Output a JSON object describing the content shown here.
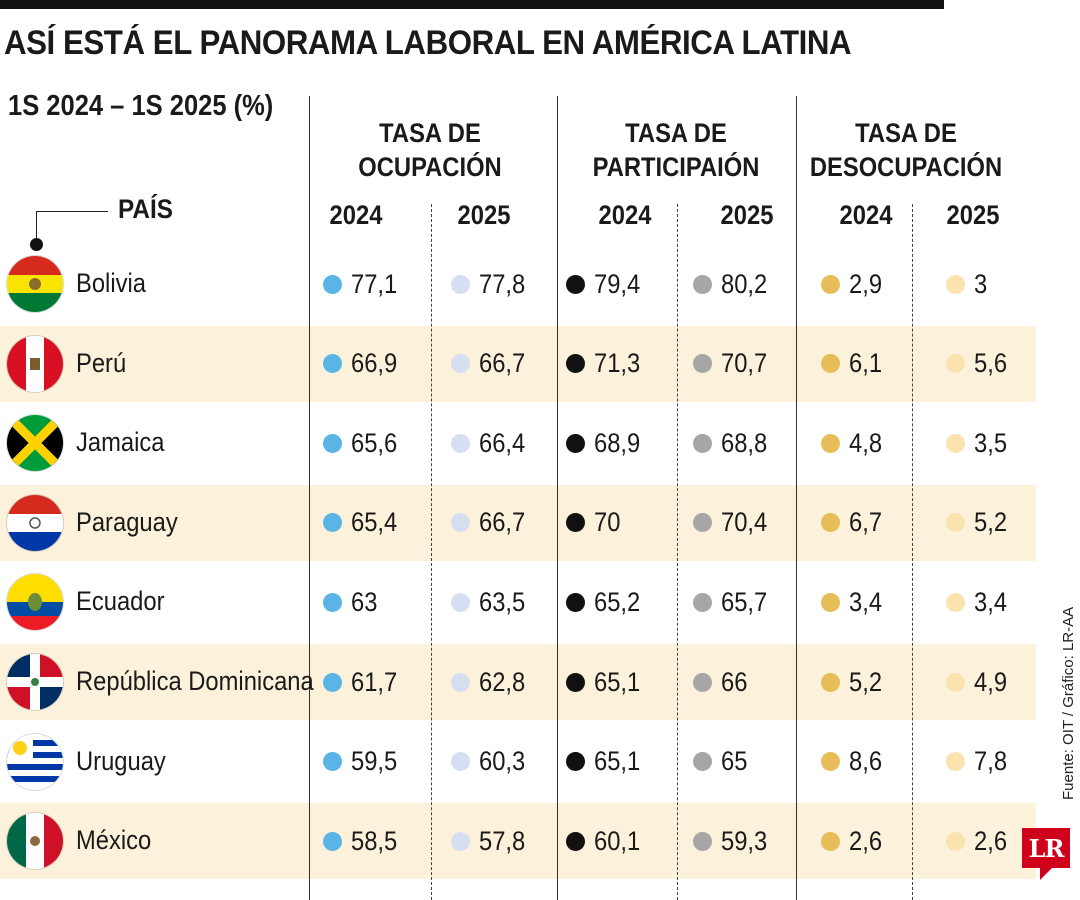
{
  "header": {
    "title": "ASÍ ESTÁ EL PANORAMA LABORAL EN AMÉRICA LATINA",
    "subtitle": "1S 2024 – 1S 2025 (%)",
    "country_label": "PAÍS"
  },
  "footer": {
    "source": "Fuente: OIT / Gráfico: LR-AA",
    "logo_text": "LR"
  },
  "colors": {
    "occupation_2024": "#5ab4e5",
    "occupation_2025": "#d6dff2",
    "participation_2024": "#111111",
    "participation_2025": "#a6a6a6",
    "unemployment_2024": "#e7bd5a",
    "unemployment_2025": "#fbe3b0",
    "row_highlight": "#fcf1da",
    "brand_red": "#d0021b"
  },
  "chart_data": {
    "type": "table",
    "title": "ASÍ ESTÁ EL PANORAMA LABORAL EN AMÉRICA LATINA",
    "subtitle": "1S 2024 – 1S 2025 (%)",
    "groups": [
      {
        "label_line1": "TASA DE",
        "label_line2": "OCUPACIÓN",
        "years": [
          "2024",
          "2025"
        ]
      },
      {
        "label_line1": "TASA DE",
        "label_line2": "PARTICIPAIÓN",
        "years": [
          "2024",
          "2025"
        ]
      },
      {
        "label_line1": "TASA DE",
        "label_line2": "DESOCUPACIÓN",
        "years": [
          "2024",
          "2025"
        ]
      }
    ],
    "rows": [
      {
        "country": "Bolivia",
        "flag": "bolivia-flag-icon",
        "values": [
          "77,1",
          "77,8",
          "79,4",
          "80,2",
          "2,9",
          "3"
        ]
      },
      {
        "country": "Perú",
        "flag": "peru-flag-icon",
        "values": [
          "66,9",
          "66,7",
          "71,3",
          "70,7",
          "6,1",
          "5,6"
        ]
      },
      {
        "country": "Jamaica",
        "flag": "jamaica-flag-icon",
        "values": [
          "65,6",
          "66,4",
          "68,9",
          "68,8",
          "4,8",
          "3,5"
        ]
      },
      {
        "country": "Paraguay",
        "flag": "paraguay-flag-icon",
        "values": [
          "65,4",
          "66,7",
          "70",
          "70,4",
          "6,7",
          "5,2"
        ]
      },
      {
        "country": "Ecuador",
        "flag": "ecuador-flag-icon",
        "values": [
          "63",
          "63,5",
          "65,2",
          "65,7",
          "3,4",
          "3,4"
        ]
      },
      {
        "country": "República Dominicana",
        "flag": "dominican-republic-flag-icon",
        "values": [
          "61,7",
          "62,8",
          "65,1",
          "66",
          "5,2",
          "4,9"
        ]
      },
      {
        "country": "Uruguay",
        "flag": "uruguay-flag-icon",
        "values": [
          "59,5",
          "60,3",
          "65,1",
          "65",
          "8,6",
          "7,8"
        ]
      },
      {
        "country": "México",
        "flag": "mexico-flag-icon",
        "values": [
          "58,5",
          "57,8",
          "60,1",
          "59,3",
          "2,6",
          "2,6"
        ]
      }
    ]
  }
}
